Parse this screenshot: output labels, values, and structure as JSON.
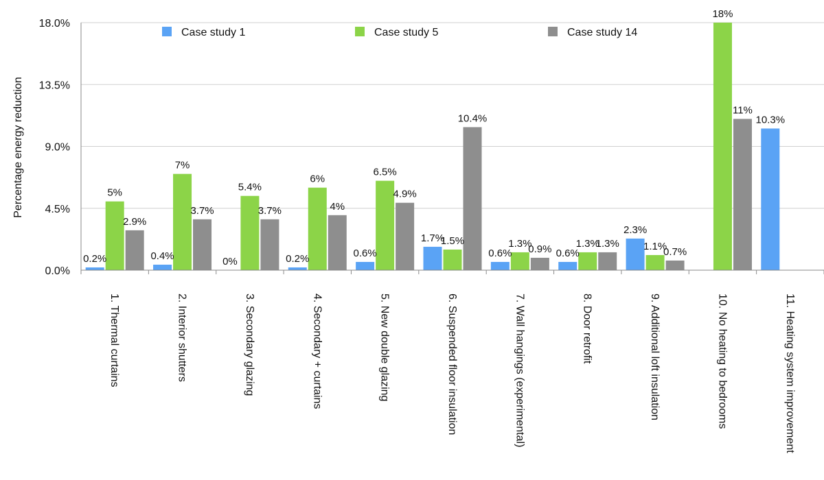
{
  "chart_data": {
    "type": "bar",
    "title": "",
    "xlabel": "",
    "ylabel": "Percentage energy reduction",
    "ylim": [
      0,
      18
    ],
    "yticks": [
      "0.0%",
      "4.5%",
      "9.0%",
      "13.5%",
      "18.0%"
    ],
    "ytick_values": [
      0,
      4.5,
      9,
      13.5,
      18
    ],
    "grid": true,
    "legend_position": "top",
    "categories": [
      "1. Thermal curtains",
      "2. Interior shutters",
      "3. Secondary glazing",
      "4. Secondary + curtains",
      "5. New double glazing",
      "6. Suspended floor insulation",
      "7. Wall hangings (experimental)",
      "8. Door retrofit",
      "9. Additional loft insulation",
      "10. No heating to bedrooms",
      "11. Heating system improvement"
    ],
    "series": [
      {
        "name": "Case study 1",
        "color": "#5aa3f5",
        "values": [
          0.2,
          0.4,
          0,
          0.2,
          0.6,
          1.7,
          0.6,
          0.6,
          2.3,
          null,
          10.3
        ],
        "labels": [
          "0.2%",
          "0.4%",
          "0%",
          "0.2%",
          "0.6%",
          "1.7%",
          "0.6%",
          "0.6%",
          "2.3%",
          "",
          "10.3%"
        ]
      },
      {
        "name": "Case study 5",
        "color": "#8cd448",
        "values": [
          5,
          7,
          5.4,
          6,
          6.5,
          1.5,
          1.3,
          1.3,
          1.1,
          18,
          null
        ],
        "labels": [
          "5%",
          "7%",
          "5.4%",
          "6%",
          "6.5%",
          "1.5%",
          "1.3%",
          "1.3%",
          "1.1%",
          "18%",
          ""
        ]
      },
      {
        "name": "Case study 14",
        "color": "#8e8e8e",
        "values": [
          2.9,
          3.7,
          3.7,
          4,
          4.9,
          10.4,
          0.9,
          1.3,
          0.7,
          11,
          null
        ],
        "labels": [
          "2.9%",
          "3.7%",
          "3.7%",
          "4%",
          "4.9%",
          "10.4%",
          "0.9%",
          "1.3%",
          "0.7%",
          "11%",
          ""
        ]
      }
    ]
  }
}
